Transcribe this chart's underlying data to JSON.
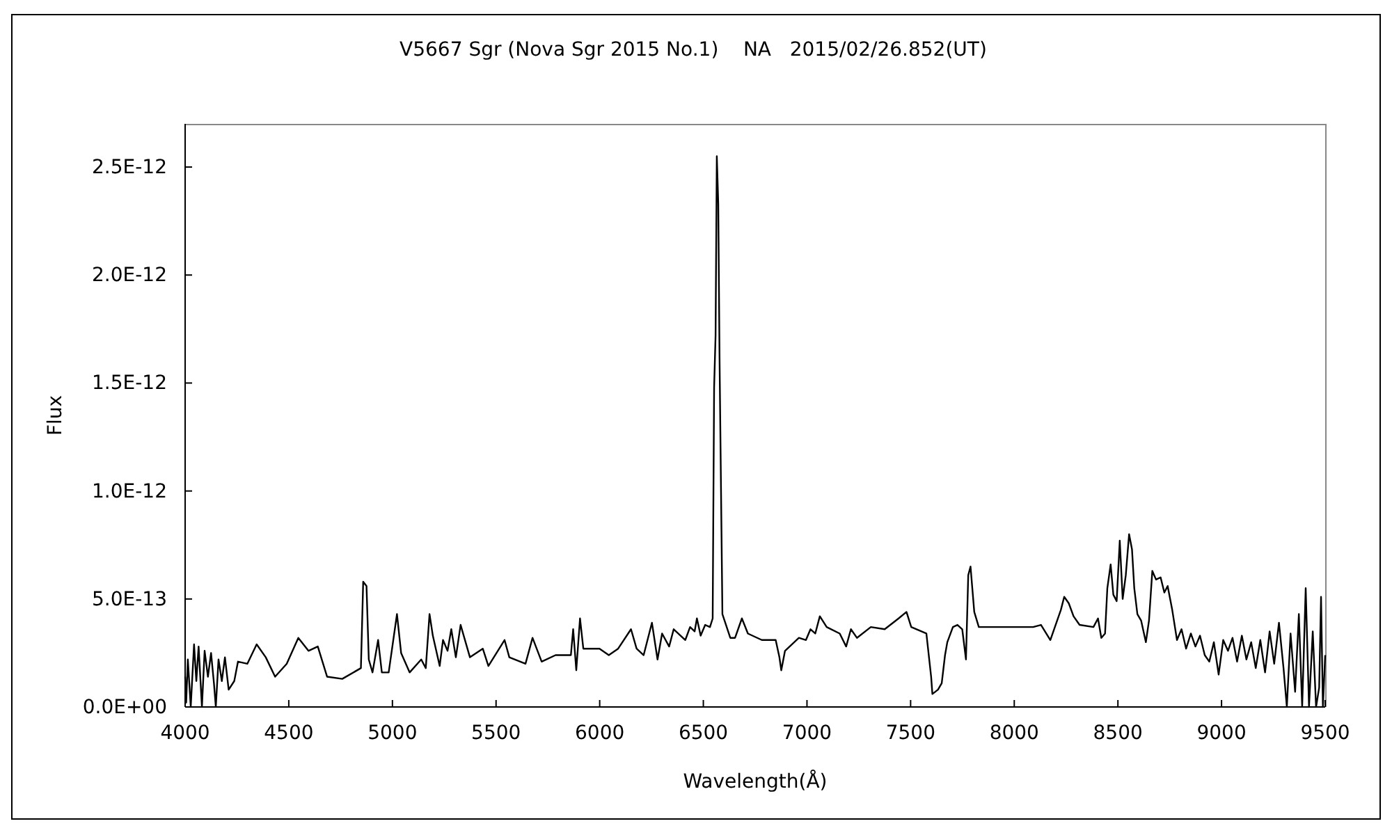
{
  "chart_data": {
    "type": "line",
    "title": "V5667 Sgr (Nova Sgr 2015 No.1)    NA   2015/02/26.852(UT)",
    "xlabel": "Wavelength(Å)",
    "ylabel": "Flux",
    "color": "#000000",
    "x": [
      4000,
      4005,
      4013,
      4027,
      4043,
      4054,
      4065,
      4081,
      4094,
      4110,
      4125,
      4139,
      4148,
      4161,
      4177,
      4192,
      4210,
      4237,
      4255,
      4300,
      4345,
      4389,
      4434,
      4490,
      4546,
      4595,
      4640,
      4685,
      4758,
      4848,
      4859,
      4875,
      4886,
      4904,
      4931,
      4949,
      4982,
      5022,
      5042,
      5083,
      5139,
      5161,
      5179,
      5195,
      5228,
      5244,
      5266,
      5284,
      5306,
      5329,
      5374,
      5436,
      5463,
      5541,
      5564,
      5642,
      5676,
      5720,
      5787,
      5861,
      5872,
      5887,
      5905,
      5921,
      5999,
      6044,
      6089,
      6151,
      6178,
      6212,
      6252,
      6279,
      6301,
      6335,
      6357,
      6413,
      6436,
      6458,
      6469,
      6487,
      6509,
      6532,
      6545,
      6552,
      6559,
      6565,
      6572,
      6578,
      6592,
      6630,
      6653,
      6686,
      6715,
      6782,
      6849,
      6867,
      6876,
      6894,
      6961,
      6995,
      7017,
      7040,
      7062,
      7095,
      7158,
      7189,
      7212,
      7241,
      7308,
      7375,
      7442,
      7480,
      7503,
      7576,
      7599,
      7605,
      7632,
      7650,
      7666,
      7677,
      7704,
      7726,
      7749,
      7767,
      7778,
      7789,
      7807,
      7829,
      7901,
      7990,
      8091,
      8129,
      8174,
      8225,
      8241,
      8263,
      8286,
      8315,
      8382,
      8404,
      8420,
      8438,
      8449,
      8465,
      8478,
      8494,
      8509,
      8523,
      8538,
      8554,
      8568,
      8579,
      8594,
      8612,
      8635,
      8650,
      8666,
      8684,
      8706,
      8724,
      8740,
      8762,
      8785,
      8807,
      8829,
      8852,
      8874,
      8896,
      8919,
      8941,
      8963,
      8986,
      9008,
      9031,
      9053,
      9075,
      9098,
      9120,
      9143,
      9165,
      9187,
      9210,
      9232,
      9254,
      9277,
      9299,
      9315,
      9333,
      9355,
      9373,
      9389,
      9406,
      9422,
      9440,
      9456,
      9471,
      9480,
      9489,
      9500
    ],
    "values": [
      1.4e-13,
      2e-14,
      2.2e-13,
      0,
      2.9e-13,
      1.2e-13,
      2.8e-13,
      0,
      2.6e-13,
      1.4e-13,
      2.5e-13,
      1.1e-13,
      0,
      2.2e-13,
      1.2e-13,
      2.3e-13,
      8e-14,
      1.2e-13,
      2.1e-13,
      2e-13,
      2.9e-13,
      2.3e-13,
      1.4e-13,
      2e-13,
      3.2e-13,
      2.6e-13,
      2.8e-13,
      1.4e-13,
      1.3e-13,
      1.8e-13,
      5.8e-13,
      5.6e-13,
      2.2e-13,
      1.6e-13,
      3.1e-13,
      1.6e-13,
      1.6e-13,
      4.3e-13,
      2.5e-13,
      1.6e-13,
      2.2e-13,
      1.8e-13,
      4.3e-13,
      3.3e-13,
      1.9e-13,
      3.1e-13,
      2.6e-13,
      3.6e-13,
      2.3e-13,
      3.8e-13,
      2.3e-13,
      2.7e-13,
      1.9e-13,
      3.1e-13,
      2.3e-13,
      2e-13,
      3.2e-13,
      2.1e-13,
      2.4e-13,
      2.4e-13,
      3.6e-13,
      1.7e-13,
      4.1e-13,
      2.7e-13,
      2.7e-13,
      2.4e-13,
      2.7e-13,
      3.6e-13,
      2.7e-13,
      2.4e-13,
      3.9e-13,
      2.2e-13,
      3.4e-13,
      2.8e-13,
      3.6e-13,
      3.1e-13,
      3.7e-13,
      3.5e-13,
      4.1e-13,
      3.3e-13,
      3.8e-13,
      3.7e-13,
      4.1e-13,
      1.48e-12,
      1.72e-12,
      2.55e-12,
      2.33e-12,
      1.63e-12,
      4.3e-13,
      3.2e-13,
      3.2e-13,
      4.1e-13,
      3.4e-13,
      3.1e-13,
      3.1e-13,
      2.3e-13,
      1.7e-13,
      2.6e-13,
      3.2e-13,
      3.1e-13,
      3.6e-13,
      3.4e-13,
      4.2e-13,
      3.7e-13,
      3.4e-13,
      2.8e-13,
      3.6e-13,
      3.2e-13,
      3.7e-13,
      3.6e-13,
      4.1e-13,
      4.4e-13,
      3.7e-13,
      3.4e-13,
      1.4e-13,
      6e-14,
      8e-14,
      1.1e-13,
      2.4e-13,
      3e-13,
      3.7e-13,
      3.8e-13,
      3.6e-13,
      2.2e-13,
      6.1e-13,
      6.5e-13,
      4.4e-13,
      3.7e-13,
      3.7e-13,
      3.7e-13,
      3.7e-13,
      3.8e-13,
      3.1e-13,
      4.5e-13,
      5.1e-13,
      4.8e-13,
      4.2e-13,
      3.8e-13,
      3.7e-13,
      4.1e-13,
      3.2e-13,
      3.4e-13,
      5.5e-13,
      6.6e-13,
      5.2e-13,
      4.9e-13,
      7.7e-13,
      5e-13,
      6.1e-13,
      8e-13,
      7.3e-13,
      5.5e-13,
      4.3e-13,
      4e-13,
      3e-13,
      4e-13,
      6.3e-13,
      5.9e-13,
      6e-13,
      5.3e-13,
      5.6e-13,
      4.5e-13,
      3.1e-13,
      3.6e-13,
      2.7e-13,
      3.4e-13,
      2.8e-13,
      3.3e-13,
      2.4e-13,
      2.1e-13,
      3e-13,
      1.5e-13,
      3.1e-13,
      2.6e-13,
      3.2e-13,
      2.1e-13,
      3.3e-13,
      2.2e-13,
      3e-13,
      1.8e-13,
      3.1e-13,
      1.6e-13,
      3.5e-13,
      2e-13,
      3.9e-13,
      1.8e-13,
      0,
      3.4e-13,
      7e-14,
      4.3e-13,
      0,
      5.5e-13,
      0,
      3.5e-13,
      0,
      9e-14,
      5.1e-13,
      0,
      2.4e-13
    ],
    "xlim": [
      4000,
      9500
    ],
    "xticks": [
      4000,
      4500,
      5000,
      5500,
      6000,
      6500,
      7000,
      7500,
      8000,
      8500,
      9000,
      9500
    ],
    "ylim": [
      0,
      2.7e-12
    ],
    "yticks": [
      {
        "value": 0,
        "label": "0.0E+00"
      },
      {
        "value": 5e-13,
        "label": "5.0E-13"
      },
      {
        "value": 1e-12,
        "label": "1.0E-12"
      },
      {
        "value": 1.5e-12,
        "label": "1.5E-12"
      },
      {
        "value": 2e-12,
        "label": "2.0E-12"
      },
      {
        "value": 2.5e-12,
        "label": "2.5E-12"
      }
    ]
  }
}
